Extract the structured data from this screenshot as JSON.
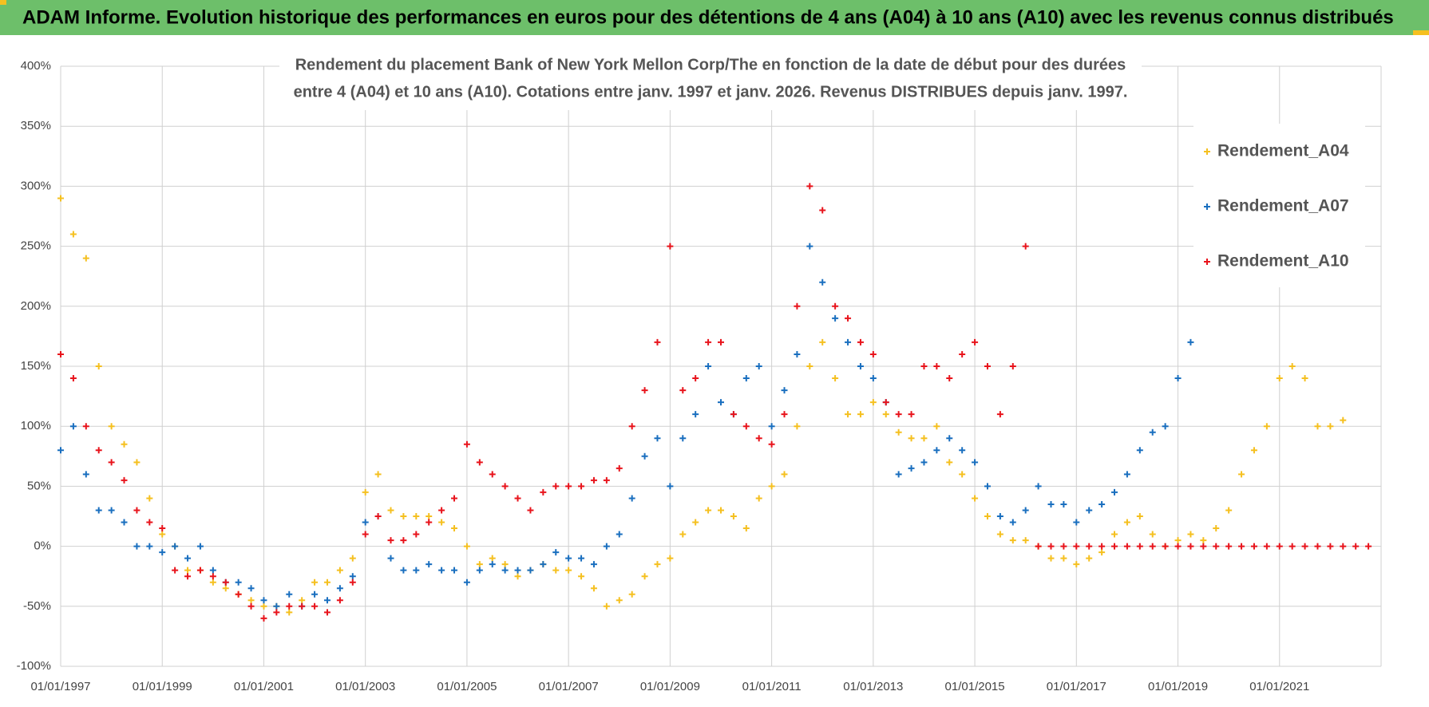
{
  "chart_data": {
    "type": "scatter",
    "banner": "ADAM Informe. Evolution historique des performances en euros pour des détentions de 4 ans (A04) à 10 ans (A10) avec les revenus connus distribués",
    "title": [
      "Rendement du placement Bank of New York Mellon Corp/The en fonction de la date de début pour des durées",
      "entre 4 (A04) et 10 ans (A10).  Cotations entre janv. 1997 et janv. 2026. Revenus DISTRIBUES  depuis janv. 1997."
    ],
    "legend": "top-right",
    "grid": true,
    "xlim": [
      "01/01/1997",
      "01/01/2023"
    ],
    "xticks": [
      "01/01/1997",
      "01/01/1999",
      "01/01/2001",
      "01/01/2003",
      "01/01/2005",
      "01/01/2007",
      "01/01/2009",
      "01/01/2011",
      "01/01/2013",
      "01/01/2015",
      "01/01/2017",
      "01/01/2019",
      "01/01/2021"
    ],
    "ylim": [
      -100,
      400
    ],
    "yticks": [
      {
        "value": -100,
        "label": "-100%"
      },
      {
        "value": -50,
        "label": "-50%"
      },
      {
        "value": 0,
        "label": "0%"
      },
      {
        "value": 50,
        "label": "50%"
      },
      {
        "value": 100,
        "label": "100%"
      },
      {
        "value": 150,
        "label": "150%"
      },
      {
        "value": 200,
        "label": "200%"
      },
      {
        "value": 250,
        "label": "250%"
      },
      {
        "value": 300,
        "label": "300%"
      },
      {
        "value": 350,
        "label": "350%"
      },
      {
        "value": 400,
        "label": "400%"
      }
    ],
    "x": [
      "01/01/1997",
      "01/04/1997",
      "01/07/1997",
      "01/10/1997",
      "01/01/1998",
      "01/04/1998",
      "01/07/1998",
      "01/10/1998",
      "01/01/1999",
      "01/04/1999",
      "01/07/1999",
      "01/10/1999",
      "01/01/2000",
      "01/04/2000",
      "01/07/2000",
      "01/10/2000",
      "01/01/2001",
      "01/04/2001",
      "01/07/2001",
      "01/10/2001",
      "01/01/2002",
      "01/04/2002",
      "01/07/2002",
      "01/10/2002",
      "01/01/2003",
      "01/04/2003",
      "01/07/2003",
      "01/10/2003",
      "01/01/2004",
      "01/04/2004",
      "01/07/2004",
      "01/10/2004",
      "01/01/2005",
      "01/04/2005",
      "01/07/2005",
      "01/10/2005",
      "01/01/2006",
      "01/04/2006",
      "01/07/2006",
      "01/10/2006",
      "01/01/2007",
      "01/04/2007",
      "01/07/2007",
      "01/10/2007",
      "01/01/2008",
      "01/04/2008",
      "01/07/2008",
      "01/10/2008",
      "01/01/2009",
      "01/04/2009",
      "01/07/2009",
      "01/10/2009",
      "01/01/2010",
      "01/04/2010",
      "01/07/2010",
      "01/10/2010",
      "01/01/2011",
      "01/04/2011",
      "01/07/2011",
      "01/10/2011",
      "01/01/2012",
      "01/04/2012",
      "01/07/2012",
      "01/10/2012",
      "01/01/2013",
      "01/04/2013",
      "01/07/2013",
      "01/10/2013",
      "01/01/2014",
      "01/04/2014",
      "01/07/2014",
      "01/10/2014",
      "01/01/2015",
      "01/04/2015",
      "01/07/2015",
      "01/10/2015",
      "01/01/2016",
      "01/04/2016",
      "01/07/2016",
      "01/10/2016",
      "01/01/2017",
      "01/04/2017",
      "01/07/2017",
      "01/10/2017",
      "01/01/2018",
      "01/04/2018",
      "01/07/2018",
      "01/10/2018",
      "01/01/2019",
      "01/04/2019",
      "01/07/2019",
      "01/10/2019",
      "01/01/2020",
      "01/04/2020",
      "01/07/2020",
      "01/10/2020",
      "01/01/2021",
      "01/04/2021",
      "01/07/2021",
      "01/10/2021",
      "01/01/2022",
      "01/04/2022",
      "01/07/2022",
      "01/10/2022"
    ],
    "series": [
      {
        "name": "Rendement_A04",
        "color": "#f5c020",
        "values": [
          290,
          260,
          240,
          150,
          100,
          85,
          70,
          40,
          10,
          0,
          -20,
          -20,
          -30,
          -35,
          -40,
          -45,
          -50,
          -50,
          -55,
          -45,
          -30,
          -30,
          -20,
          -10,
          45,
          60,
          30,
          25,
          25,
          25,
          20,
          15,
          0,
          -15,
          -10,
          -15,
          -25,
          -20,
          -15,
          -20,
          -20,
          -25,
          -35,
          -50,
          -45,
          -40,
          -25,
          -15,
          -10,
          10,
          20,
          30,
          30,
          25,
          15,
          40,
          50,
          60,
          100,
          150,
          170,
          140,
          110,
          110,
          120,
          110,
          95,
          90,
          90,
          100,
          70,
          60,
          40,
          25,
          10,
          5,
          5,
          0,
          -10,
          -10,
          -15,
          -10,
          -5,
          10,
          20,
          25,
          10,
          0,
          5,
          10,
          5,
          15,
          30,
          60,
          80,
          100,
          140,
          150,
          140,
          100,
          100,
          105,
          null,
          null
        ]
      },
      {
        "name": "Rendement_A07",
        "color": "#1a6fbf",
        "values": [
          80,
          100,
          60,
          30,
          30,
          20,
          0,
          0,
          -5,
          0,
          -10,
          0,
          -20,
          -30,
          -30,
          -35,
          -45,
          -50,
          -40,
          -50,
          -40,
          -45,
          -35,
          -25,
          20,
          25,
          -10,
          -20,
          -20,
          -15,
          -20,
          -20,
          -30,
          -20,
          -15,
          -20,
          -20,
          -20,
          -15,
          -5,
          -10,
          -10,
          -15,
          0,
          10,
          40,
          75,
          90,
          50,
          90,
          110,
          150,
          120,
          110,
          140,
          150,
          100,
          130,
          160,
          250,
          220,
          190,
          170,
          150,
          140,
          120,
          60,
          65,
          70,
          80,
          90,
          80,
          70,
          50,
          25,
          20,
          30,
          50,
          35,
          35,
          20,
          30,
          35,
          45,
          60,
          80,
          95,
          100,
          140,
          170,
          null,
          null,
          null,
          null,
          null,
          null,
          null,
          null,
          null,
          null,
          null,
          null,
          null,
          null
        ]
      },
      {
        "name": "Rendement_A10",
        "color": "#e8141c",
        "values": [
          160,
          140,
          100,
          80,
          70,
          55,
          30,
          20,
          15,
          -20,
          -25,
          -20,
          -25,
          -30,
          -40,
          -50,
          -60,
          -55,
          -50,
          -50,
          -50,
          -55,
          -45,
          -30,
          10,
          25,
          5,
          5,
          10,
          20,
          30,
          40,
          85,
          70,
          60,
          50,
          40,
          30,
          45,
          50,
          50,
          50,
          55,
          55,
          65,
          100,
          130,
          170,
          250,
          130,
          140,
          170,
          170,
          110,
          100,
          90,
          85,
          110,
          200,
          300,
          280,
          200,
          190,
          170,
          160,
          120,
          110,
          110,
          150,
          150,
          140,
          160,
          170,
          150,
          110,
          150,
          250,
          0,
          0,
          0,
          0,
          0,
          0,
          0,
          0,
          0,
          0,
          0,
          0,
          0,
          0,
          0,
          0,
          0,
          0,
          0,
          0,
          0,
          0,
          0,
          0,
          0,
          0,
          0
        ]
      }
    ]
  }
}
